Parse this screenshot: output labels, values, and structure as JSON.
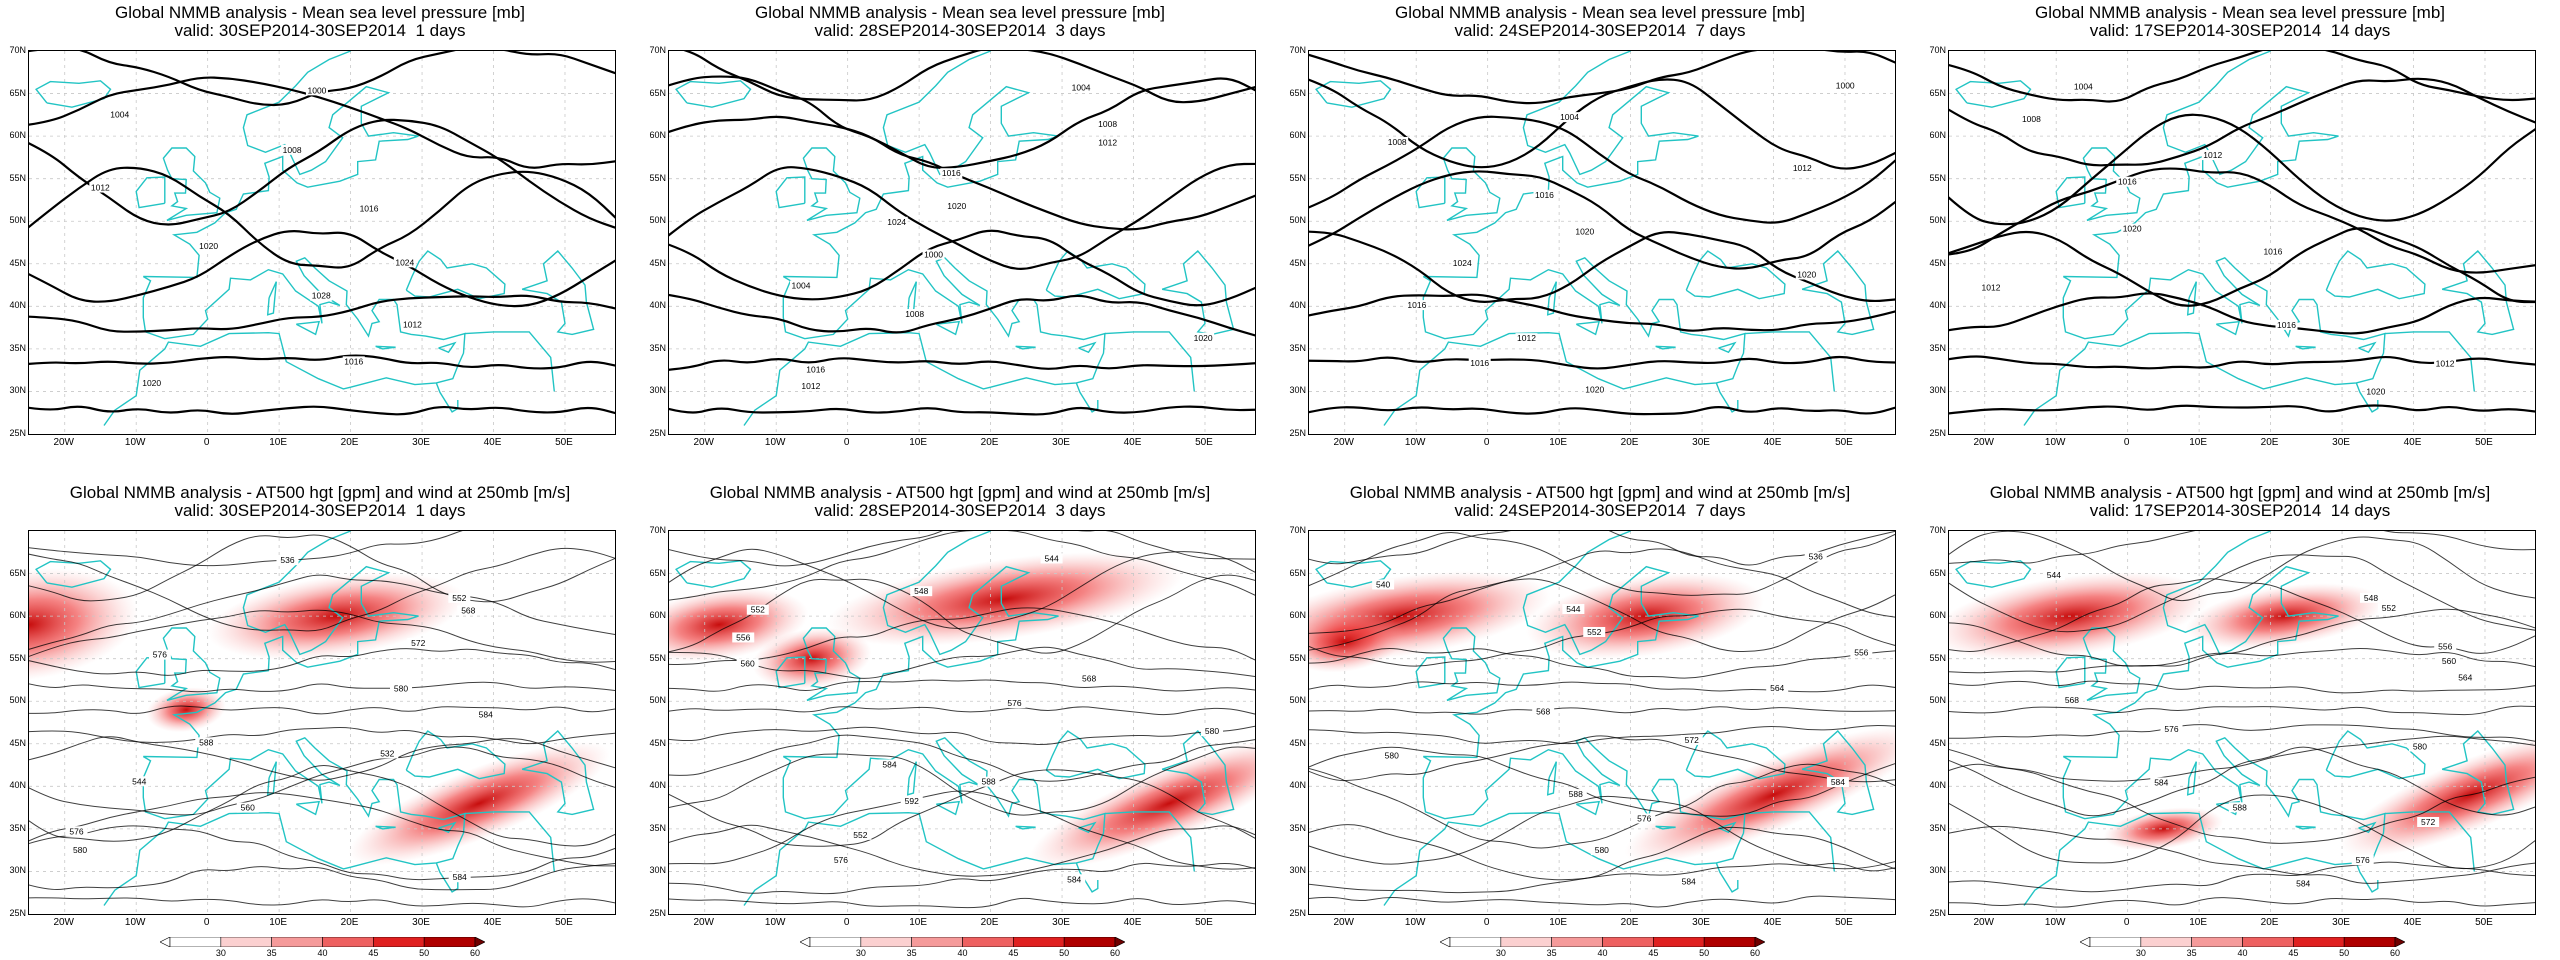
{
  "chart_data": [
    {
      "type": "contour",
      "title": "Global NMMB analysis - Mean sea level pressure [mb]",
      "subtitle": "valid: 30SEP2014-30SEP2014  1 days",
      "xticks": [
        "20W",
        "10W",
        "0",
        "10E",
        "20E",
        "30E",
        "40E",
        "50E"
      ],
      "yticks": [
        "70N",
        "65N",
        "60N",
        "55N",
        "50N",
        "45N",
        "40N",
        "35N",
        "30N",
        "25N"
      ],
      "contour_labels": [
        "1000",
        "1004",
        "1008",
        "1012",
        "1016",
        "1020",
        "1024",
        "1028",
        "1012",
        "1016",
        "1020"
      ]
    },
    {
      "type": "contour",
      "title": "Global NMMB analysis - Mean sea level pressure [mb]",
      "subtitle": "valid: 28SEP2014-30SEP2014  3 days",
      "xticks": [
        "20W",
        "10W",
        "0",
        "10E",
        "20E",
        "30E",
        "40E",
        "50E"
      ],
      "yticks": [
        "70N",
        "65N",
        "60N",
        "55N",
        "50N",
        "45N",
        "40N",
        "35N",
        "30N",
        "25N"
      ],
      "contour_labels": [
        "1004",
        "1008",
        "1012",
        "1016",
        "1020",
        "1024",
        "1000",
        "1004",
        "1008",
        "1020",
        "1016",
        "1012"
      ]
    },
    {
      "type": "contour",
      "title": "Global NMMB analysis - Mean sea level pressure [mb]",
      "subtitle": "valid: 24SEP2014-30SEP2014  7 days",
      "xticks": [
        "20W",
        "10W",
        "0",
        "10E",
        "20E",
        "30E",
        "40E",
        "50E"
      ],
      "yticks": [
        "70N",
        "65N",
        "60N",
        "55N",
        "50N",
        "45N",
        "40N",
        "35N",
        "30N",
        "25N"
      ],
      "contour_labels": [
        "1000",
        "1004",
        "1008",
        "1012",
        "1016",
        "1020",
        "1024",
        "1020",
        "1016",
        "1012",
        "1016",
        "1020"
      ]
    },
    {
      "type": "contour",
      "title": "Global NMMB analysis - Mean sea level pressure [mb]",
      "subtitle": "valid: 17SEP2014-30SEP2014  14 days",
      "xticks": [
        "20W",
        "10W",
        "0",
        "10E",
        "20E",
        "30E",
        "40E",
        "50E"
      ],
      "yticks": [
        "70N",
        "65N",
        "60N",
        "55N",
        "50N",
        "45N",
        "40N",
        "35N",
        "30N",
        "25N"
      ],
      "contour_labels": [
        "1004",
        "1008",
        "1012",
        "1016",
        "1020",
        "1016",
        "1012",
        "1016",
        "1012",
        "1020"
      ]
    },
    {
      "type": "contour",
      "title": "Global NMMB analysis - AT500 hgt [gpm] and wind at 250mb [m/s]",
      "subtitle": "valid: 30SEP2014-30SEP2014  1 days",
      "xticks": [
        "20W",
        "10W",
        "0",
        "10E",
        "20E",
        "30E",
        "40E",
        "50E"
      ],
      "yticks": [
        "65N",
        "60N",
        "55N",
        "50N",
        "45N",
        "40N",
        "35N",
        "30N",
        "25N"
      ],
      "contour_labels": [
        "536",
        "552",
        "568",
        "572",
        "576",
        "580",
        "584",
        "588",
        "532",
        "544",
        "560",
        "576",
        "580",
        "584"
      ],
      "colorbar": [
        "30",
        "35",
        "40",
        "45",
        "50",
        "60"
      ]
    },
    {
      "type": "contour",
      "title": "Global NMMB analysis - AT500 hgt [gpm] and wind at 250mb [m/s]",
      "subtitle": "valid: 28SEP2014-30SEP2014  3 days",
      "xticks": [
        "20W",
        "10W",
        "0",
        "10E",
        "20E",
        "30E",
        "40E",
        "50E"
      ],
      "yticks": [
        "70N",
        "65N",
        "60N",
        "55N",
        "50N",
        "45N",
        "40N",
        "35N",
        "30N",
        "25N"
      ],
      "contour_labels": [
        "544",
        "548",
        "552",
        "556",
        "560",
        "568",
        "576",
        "580",
        "584",
        "588",
        "592",
        "552",
        "576",
        "584"
      ],
      "colorbar": [
        "30",
        "35",
        "40",
        "45",
        "50",
        "60"
      ]
    },
    {
      "type": "contour",
      "title": "Global NMMB analysis - AT500 hgt [gpm] and wind at 250mb [m/s]",
      "subtitle": "valid: 24SEP2014-30SEP2014  7 days",
      "xticks": [
        "20W",
        "10W",
        "0",
        "10E",
        "20E",
        "30E",
        "40E",
        "50E"
      ],
      "yticks": [
        "70N",
        "65N",
        "60N",
        "55N",
        "50N",
        "45N",
        "40N",
        "35N",
        "30N",
        "25N"
      ],
      "contour_labels": [
        "536",
        "540",
        "544",
        "552",
        "556",
        "564",
        "568",
        "572",
        "580",
        "584",
        "588",
        "576",
        "580",
        "584"
      ],
      "colorbar": [
        "30",
        "35",
        "40",
        "45",
        "50",
        "60"
      ]
    },
    {
      "type": "contour",
      "title": "Global NMMB analysis - AT500 hgt [gpm] and wind at 250mb [m/s]",
      "subtitle": "valid: 17SEP2014-30SEP2014  14 days",
      "xticks": [
        "20W",
        "10W",
        "0",
        "10E",
        "20E",
        "30E",
        "40E",
        "50E"
      ],
      "yticks": [
        "70N",
        "65N",
        "60N",
        "55N",
        "50N",
        "45N",
        "40N",
        "35N",
        "30N",
        "25N"
      ],
      "contour_labels": [
        "544",
        "548",
        "552",
        "556",
        "560",
        "564",
        "568",
        "576",
        "580",
        "584",
        "588",
        "572",
        "576",
        "584"
      ],
      "colorbar": [
        "30",
        "35",
        "40",
        "45",
        "50",
        "60"
      ]
    }
  ],
  "style": {
    "contour_color": "#000000",
    "coast_color": "#22c4c4",
    "wind_color": "#e01010",
    "grid_color": "#c8c8c8"
  }
}
